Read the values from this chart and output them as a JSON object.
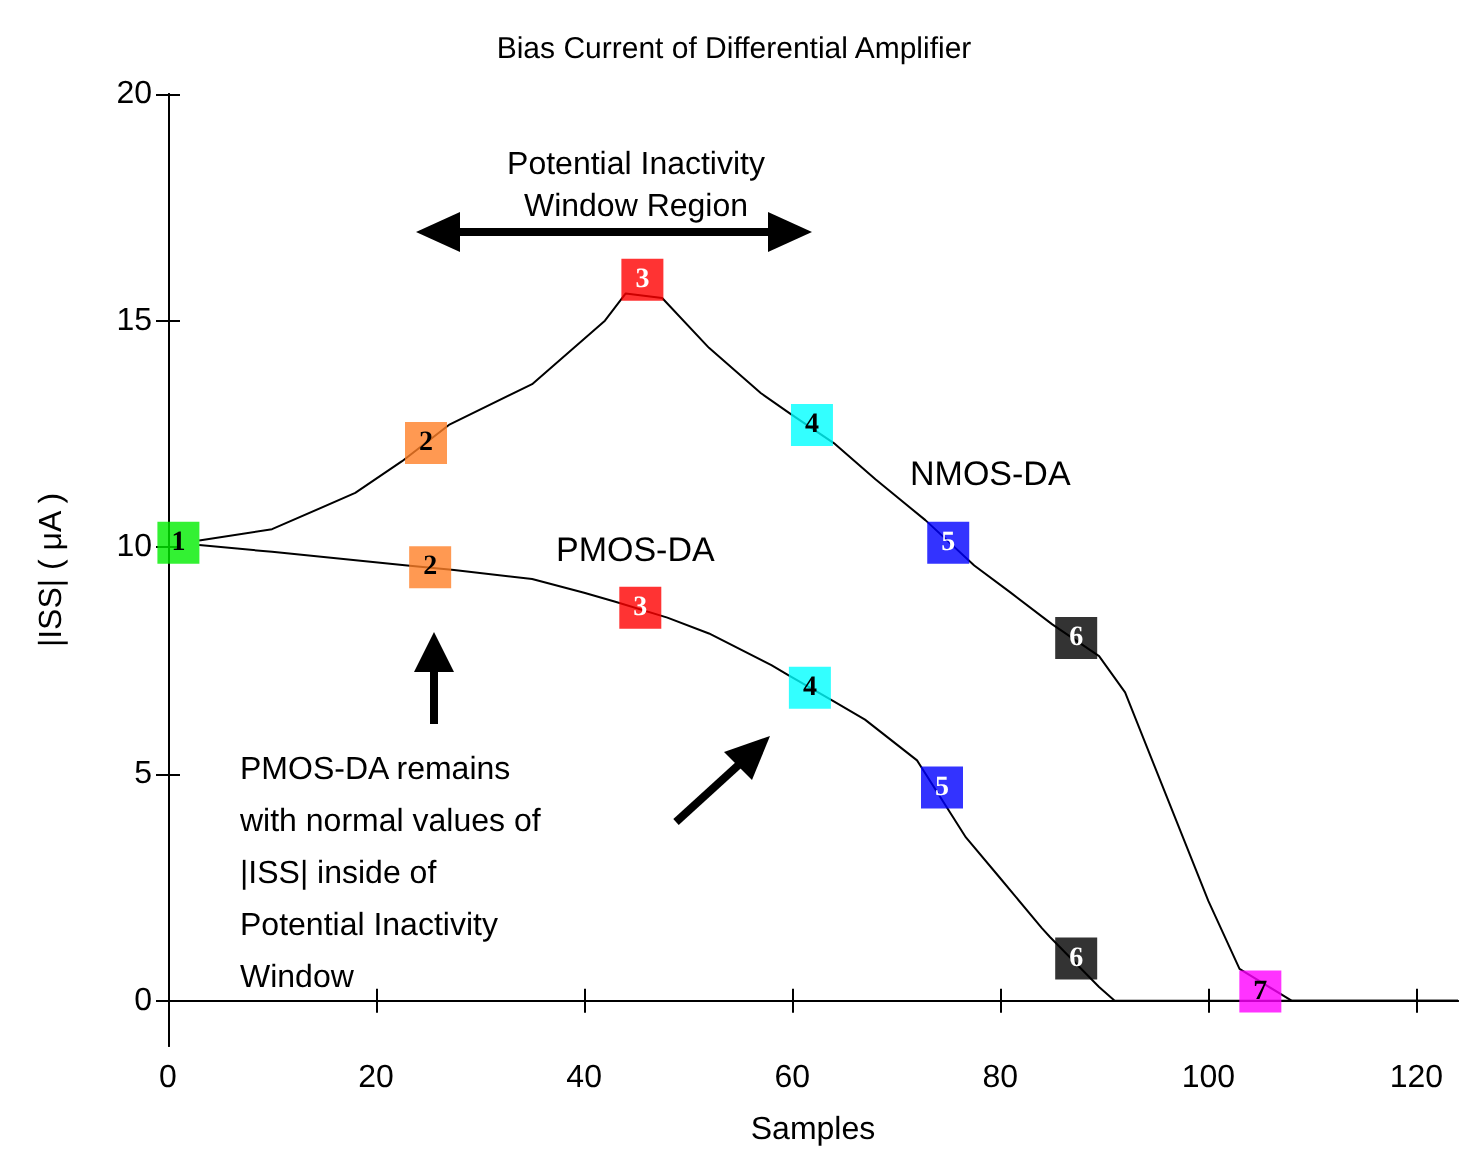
{
  "chart_data": {
    "type": "line",
    "title": "Bias Current of Differential Amplifier",
    "xlabel": "Samples",
    "ylabel": "|ISS| ( μA )",
    "xlim": [
      0,
      124
    ],
    "xticks": [
      0,
      20,
      40,
      60,
      80,
      100,
      120
    ],
    "ylim": [
      -1,
      20
    ],
    "yticks": [
      0,
      5,
      10,
      15,
      20
    ],
    "series": [
      {
        "color": "#000000",
        "marker": "none",
        "x": [
          3,
          10,
          18,
          22.5,
          27,
          35,
          42,
          44,
          47.5,
          52,
          57,
          59.8,
          64,
          68,
          72.8,
          77.5,
          81,
          85,
          89.5,
          92,
          96,
          100,
          103,
          108,
          124
        ],
        "values": [
          10.15,
          10.4,
          11.2,
          11.9,
          12.7,
          13.6,
          15,
          15.6,
          15.5,
          14.4,
          13.4,
          12.95,
          12.3,
          11.5,
          10.6,
          9.6,
          9,
          8.3,
          7.6,
          6.8,
          4.5,
          2.2,
          0.7,
          0,
          0
        ]
      },
      {
        "color": "#000000",
        "marker": "none",
        "x": [
          3,
          10,
          23,
          27.5,
          35,
          40,
          43,
          48,
          52,
          58,
          59.5,
          64,
          67,
          72,
          76.7,
          80,
          84,
          84.8,
          89.5,
          91,
          124
        ],
        "values": [
          10.05,
          9.9,
          9.6,
          9.5,
          9.3,
          9,
          8.8,
          8.45,
          8.1,
          7.4,
          7.2,
          6.6,
          6.2,
          5.3,
          3.6,
          2.7,
          1.6,
          1.4,
          0.3,
          0,
          0
        ]
      },
      {
        "type": "scatter",
        "marker": "square",
        "x": [
          1,
          24.8,
          45.6,
          61.9,
          75,
          87.3,
          105
        ],
        "values": [
          10.1,
          12.3,
          15.9,
          12.7,
          10.1,
          8,
          0.2
        ],
        "colors": [
          "#00ee00",
          "#ff7f27",
          "#ff0000",
          "#00ffff",
          "#0000ff",
          "#000000",
          "#ff00ff"
        ]
      },
      {
        "type": "scatter",
        "marker": "square",
        "x": [
          25.2,
          45.4,
          61.7,
          74.4,
          87.3
        ],
        "values": [
          9.56,
          8.67,
          6.9,
          4.7,
          0.93
        ],
        "colors": [
          "#ff7f27",
          "#ff0000",
          "#00ffff",
          "#0000ff",
          "#000000"
        ]
      }
    ],
    "annotations": [
      "Potential Inactivity\nWindow Region",
      "PMOS-DA remains\nwith normal values of\n|ISS| inside of\nPotential Inactivity\nWindow",
      "NMOS-DA",
      "PMOS-DA",
      {
        "text": "1",
        "x": 1,
        "y": 10.1
      },
      {
        "text": "2",
        "x": 24.8,
        "y": 12.3
      },
      {
        "text": "3",
        "x": 45.6,
        "y": 15.9
      },
      {
        "text": "4",
        "x": 61.9,
        "y": 12.7
      },
      {
        "text": "5",
        "x": 75,
        "y": 10.1
      },
      {
        "text": "6",
        "x": 87.3,
        "y": 8
      },
      {
        "text": "7",
        "x": 105,
        "y": 0.2
      },
      {
        "text": "2",
        "x": 25.2,
        "y": 9.56
      },
      {
        "text": "3",
        "x": 45.4,
        "y": 8.67
      },
      {
        "text": "4",
        "x": 61.7,
        "y": 6.9
      },
      {
        "text": "5",
        "x": 74.4,
        "y": 4.7
      },
      {
        "text": "6",
        "x": 87.3,
        "y": 0.93
      }
    ]
  }
}
